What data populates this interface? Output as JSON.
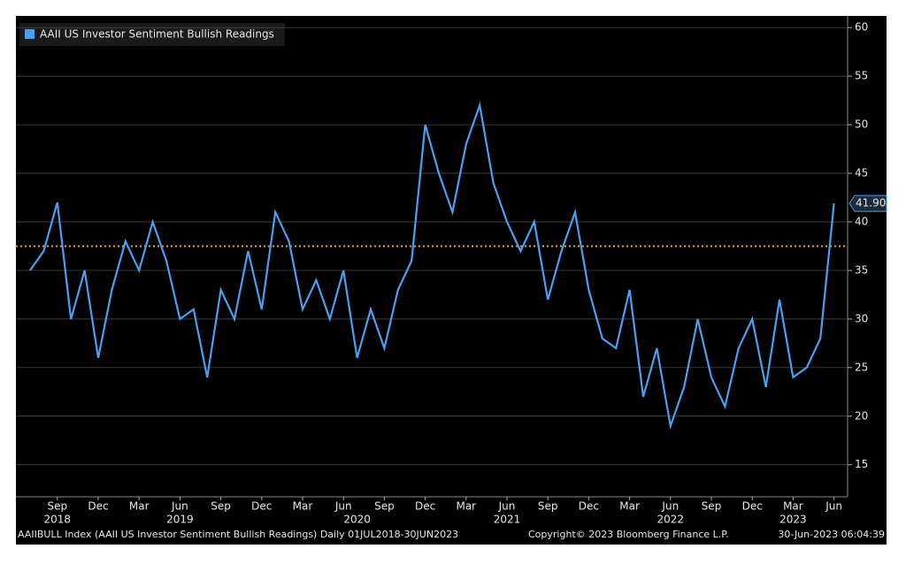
{
  "chart_data": {
    "type": "line",
    "x": [
      "2018-07",
      "2018-08",
      "2018-09",
      "2018-10",
      "2018-11",
      "2018-12",
      "2019-01",
      "2019-02",
      "2019-03",
      "2019-04",
      "2019-05",
      "2019-06",
      "2019-07",
      "2019-08",
      "2019-09",
      "2019-10",
      "2019-11",
      "2019-12",
      "2020-01",
      "2020-02",
      "2020-03",
      "2020-04",
      "2020-05",
      "2020-06",
      "2020-07",
      "2020-08",
      "2020-09",
      "2020-10",
      "2020-11",
      "2020-12",
      "2021-01",
      "2021-02",
      "2021-03",
      "2021-04",
      "2021-05",
      "2021-06",
      "2021-07",
      "2021-08",
      "2021-09",
      "2021-10",
      "2021-11",
      "2021-12",
      "2022-01",
      "2022-02",
      "2022-03",
      "2022-04",
      "2022-05",
      "2022-06",
      "2022-07",
      "2022-08",
      "2022-09",
      "2022-10",
      "2022-11",
      "2022-12",
      "2023-01",
      "2023-02",
      "2023-03",
      "2023-04",
      "2023-05",
      "2023-06"
    ],
    "series": [
      {
        "name": "AAII US Investor Sentiment Bullish Readings",
        "color": "#4a9ff0",
        "values": [
          35,
          37,
          42,
          30,
          35,
          26,
          33,
          38,
          35,
          40,
          36,
          30,
          31,
          24,
          33,
          30,
          37,
          31,
          41,
          38,
          31,
          34,
          30,
          35,
          26,
          31,
          27,
          33,
          36,
          50,
          45,
          41,
          48,
          52,
          44,
          40,
          37,
          40,
          32,
          37,
          41,
          33,
          28,
          27,
          33,
          22,
          27,
          19,
          23,
          30,
          24,
          21,
          27,
          30,
          23,
          32,
          24,
          25,
          28,
          41.9
        ],
        "value_labels": [
          null,
          null,
          null,
          null,
          null,
          null,
          null,
          null,
          null,
          null,
          null,
          null,
          null,
          null,
          null,
          null,
          null,
          null,
          null,
          null,
          null,
          null,
          null,
          null,
          null,
          null,
          null,
          null,
          null,
          null,
          null,
          null,
          null,
          null,
          null,
          null,
          null,
          null,
          null,
          null,
          null,
          null,
          null,
          null,
          null,
          null,
          null,
          null,
          null,
          null,
          null,
          null,
          null,
          null,
          null,
          null,
          null,
          null,
          null,
          "41.90"
        ]
      }
    ],
    "reference_line": 37.5,
    "reference_color": "#f0a020",
    "ylim": [
      11.7,
      61.2
    ],
    "yticks": [
      15,
      20,
      25,
      30,
      35,
      40,
      45,
      50,
      55,
      60
    ],
    "grid": true,
    "xticks": [
      {
        "value": "2018-09",
        "label": "Sep"
      },
      {
        "value": "2018-12",
        "label": "Dec"
      },
      {
        "value": "2019-03",
        "label": "Mar"
      },
      {
        "value": "2019-06",
        "label": "Jun"
      },
      {
        "value": "2019-09",
        "label": "Sep"
      },
      {
        "value": "2019-12",
        "label": "Dec"
      },
      {
        "value": "2020-03",
        "label": "Mar"
      },
      {
        "value": "2020-06",
        "label": "Jun"
      },
      {
        "value": "2020-09",
        "label": "Sep"
      },
      {
        "value": "2020-12",
        "label": "Dec"
      },
      {
        "value": "2021-03",
        "label": "Mar"
      },
      {
        "value": "2021-06",
        "label": "Jun"
      },
      {
        "value": "2021-09",
        "label": "Sep"
      },
      {
        "value": "2021-12",
        "label": "Dec"
      },
      {
        "value": "2022-03",
        "label": "Mar"
      },
      {
        "value": "2022-06",
        "label": "Jun"
      },
      {
        "value": "2022-09",
        "label": "Sep"
      },
      {
        "value": "2022-12",
        "label": "Dec"
      },
      {
        "value": "2023-03",
        "label": "Mar"
      },
      {
        "value": "2023-06",
        "label": "Jun"
      }
    ],
    "year_labels": [
      {
        "value": "2018-09",
        "label": "2018"
      },
      {
        "value": "2019-06",
        "label": "2019"
      },
      {
        "value": "2020-07",
        "label": "2020"
      },
      {
        "value": "2021-06",
        "label": "2021"
      },
      {
        "value": "2022-06",
        "label": "2022"
      },
      {
        "value": "2023-03",
        "label": "2023"
      }
    ],
    "footer": {
      "description": "AAIIBULL Index (AAII US Investor Sentiment Bullish Readings)  Daily 01JUL2018-30JUN2023",
      "copyright": "Copyright© 2023 Bloomberg Finance L.P.",
      "timestamp": "30-Jun-2023 06:04:39"
    }
  }
}
